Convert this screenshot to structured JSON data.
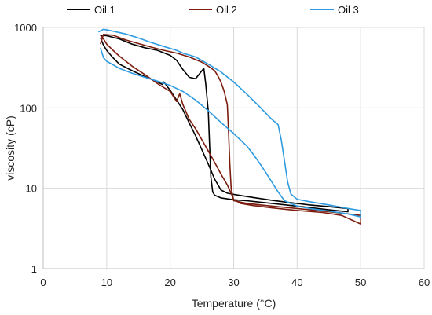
{
  "chart_data": {
    "type": "line",
    "xlabel": "Temperature (°C)",
    "ylabel": "viscosity (cP)",
    "xlim": [
      0,
      60
    ],
    "ylim": [
      1,
      1000
    ],
    "y_scale": "log",
    "grid": "vertical-and-horizontal",
    "legend_position": "top",
    "x_ticks": [
      "0",
      "10",
      "20",
      "30",
      "40",
      "50",
      "60"
    ],
    "y_ticks": [
      "1",
      "10",
      "100",
      "1000"
    ],
    "series": [
      {
        "name": "Oil 1",
        "color": "#000000",
        "cooling": [
          [
            9.0,
            800
          ],
          [
            10,
            790
          ],
          [
            12,
            720
          ],
          [
            14,
            620
          ],
          [
            16,
            560
          ],
          [
            18,
            520
          ],
          [
            20,
            450
          ],
          [
            21,
            390
          ],
          [
            22,
            300
          ],
          [
            23,
            240
          ],
          [
            24,
            230
          ],
          [
            25,
            290
          ],
          [
            25.3,
            310
          ],
          [
            25.6,
            200
          ],
          [
            26,
            90
          ],
          [
            26.2,
            35
          ],
          [
            26.4,
            14
          ],
          [
            26.7,
            9
          ],
          [
            27,
            8.2
          ],
          [
            28,
            7.6
          ],
          [
            30,
            7.2
          ],
          [
            32,
            7.0
          ],
          [
            35,
            6.6
          ],
          [
            40,
            6.0
          ],
          [
            45,
            5.4
          ],
          [
            48,
            5.1
          ]
        ],
        "heating": [
          [
            48,
            5.6
          ],
          [
            45,
            5.9
          ],
          [
            42,
            6.2
          ],
          [
            39,
            6.6
          ],
          [
            36,
            7.1
          ],
          [
            33,
            7.7
          ],
          [
            30,
            8.4
          ],
          [
            29,
            8.7
          ],
          [
            28,
            9.5
          ],
          [
            27,
            13
          ],
          [
            26,
            20
          ],
          [
            25,
            30
          ],
          [
            24,
            45
          ],
          [
            23,
            65
          ],
          [
            22,
            95
          ],
          [
            21,
            125
          ],
          [
            20,
            165
          ],
          [
            19,
            210
          ],
          [
            18.8,
            195
          ],
          [
            18,
            210
          ],
          [
            16,
            245
          ],
          [
            14,
            290
          ],
          [
            12,
            350
          ],
          [
            11,
            420
          ],
          [
            10,
            520
          ],
          [
            9.5,
            600
          ],
          [
            9.0,
            750
          ]
        ]
      },
      {
        "name": "Oil 2",
        "color": "#7B1C0E",
        "cooling": [
          [
            9.0,
            620
          ],
          [
            9.5,
            820
          ],
          [
            11,
            800
          ],
          [
            13,
            700
          ],
          [
            15,
            630
          ],
          [
            17,
            570
          ],
          [
            19,
            520
          ],
          [
            21,
            480
          ],
          [
            23,
            430
          ],
          [
            25,
            370
          ],
          [
            26,
            330
          ],
          [
            27,
            290
          ],
          [
            27.5,
            250
          ],
          [
            28,
            210
          ],
          [
            28.5,
            160
          ],
          [
            29,
            110
          ],
          [
            29.2,
            50
          ],
          [
            29.4,
            20
          ],
          [
            29.6,
            10
          ],
          [
            30,
            7.0
          ],
          [
            32,
            6.5
          ],
          [
            35,
            6.1
          ],
          [
            40,
            5.6
          ],
          [
            45,
            5.1
          ],
          [
            48,
            4.8
          ],
          [
            50,
            4.6
          ]
        ],
        "heating": [
          [
            50,
            3.6
          ],
          [
            47,
            4.6
          ],
          [
            44,
            5.0
          ],
          [
            40,
            5.3
          ],
          [
            36,
            5.7
          ],
          [
            33,
            6.1
          ],
          [
            31,
            6.5
          ],
          [
            30,
            7.3
          ],
          [
            29.5,
            9.0
          ],
          [
            29,
            11
          ],
          [
            28,
            15
          ],
          [
            27,
            21
          ],
          [
            26,
            29
          ],
          [
            25,
            40
          ],
          [
            24,
            55
          ],
          [
            23,
            72
          ],
          [
            22,
            110
          ],
          [
            21.5,
            150
          ],
          [
            21,
            120
          ],
          [
            20,
            160
          ],
          [
            18,
            200
          ],
          [
            16,
            260
          ],
          [
            14,
            330
          ],
          [
            12,
            440
          ],
          [
            11,
            520
          ],
          [
            10,
            620
          ],
          [
            9.5,
            720
          ],
          [
            9.0,
            800
          ]
        ]
      },
      {
        "name": "Oil 3",
        "color": "#2E9BE0",
        "cooling": [
          [
            8.7,
            880
          ],
          [
            9.5,
            950
          ],
          [
            11,
            900
          ],
          [
            13,
            830
          ],
          [
            15,
            740
          ],
          [
            17,
            650
          ],
          [
            19,
            580
          ],
          [
            21,
            520
          ],
          [
            22,
            480
          ],
          [
            24,
            430
          ],
          [
            26,
            350
          ],
          [
            28,
            280
          ],
          [
            30,
            210
          ],
          [
            32,
            150
          ],
          [
            34,
            105
          ],
          [
            36,
            72
          ],
          [
            37,
            62
          ],
          [
            37.5,
            40
          ],
          [
            38,
            22
          ],
          [
            38.5,
            12
          ],
          [
            39,
            8.5
          ],
          [
            40,
            7.3
          ],
          [
            42,
            6.8
          ],
          [
            45,
            6.2
          ],
          [
            48,
            5.6
          ],
          [
            50,
            5.3
          ]
        ],
        "heating": [
          [
            50,
            4.4
          ],
          [
            48,
            4.8
          ],
          [
            45,
            5.2
          ],
          [
            42,
            5.6
          ],
          [
            40,
            6.0
          ],
          [
            38,
            7.0
          ],
          [
            37,
            9
          ],
          [
            36,
            12
          ],
          [
            35,
            16
          ],
          [
            34,
            21
          ],
          [
            33,
            27
          ],
          [
            32,
            34
          ],
          [
            30,
            48
          ],
          [
            28,
            66
          ],
          [
            26,
            92
          ],
          [
            24,
            125
          ],
          [
            22,
            160
          ],
          [
            20,
            190
          ],
          [
            18,
            215
          ],
          [
            16,
            240
          ],
          [
            14,
            270
          ],
          [
            12,
            310
          ],
          [
            10,
            380
          ],
          [
            9.5,
            420
          ],
          [
            9.0,
            560
          ]
        ]
      }
    ]
  }
}
